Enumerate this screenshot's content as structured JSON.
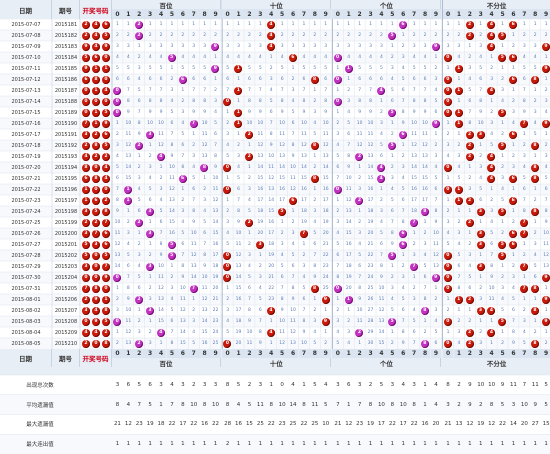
{
  "headers": {
    "date": "日期",
    "issue": "期号",
    "draw": "开奖号码",
    "groups": [
      "百位",
      "十位",
      "个位",
      "不分位"
    ],
    "digits": [
      "0",
      "1",
      "2",
      "3",
      "4",
      "5",
      "6",
      "7",
      "8",
      "9"
    ]
  },
  "rows": [
    {
      "date": "2015-07-07",
      "issue": "2015181",
      "nums": [
        2,
        4,
        6
      ]
    },
    {
      "date": "2015-07-08",
      "issue": "2015182",
      "nums": [
        2,
        4,
        5
      ]
    },
    {
      "date": "2015-07-09",
      "issue": "2015183",
      "nums": [
        9,
        4,
        9
      ]
    },
    {
      "date": "2015-07-10",
      "issue": "2015184",
      "nums": [
        5,
        6,
        0
      ]
    },
    {
      "date": "2015-07-11",
      "issue": "2015185",
      "nums": [
        9,
        1,
        1
      ]
    },
    {
      "date": "2015-07-12",
      "issue": "2015186",
      "nums": [
        6,
        8,
        0
      ]
    },
    {
      "date": "2015-07-13",
      "issue": "2015187",
      "nums": [
        0,
        1,
        4
      ]
    },
    {
      "date": "2015-07-14",
      "issue": "2015188",
      "nums": [
        0,
        0,
        0
      ]
    },
    {
      "date": "2015-07-15",
      "issue": "2015189",
      "nums": [
        0,
        1,
        5
      ]
    },
    {
      "date": "2015-07-16",
      "issue": "2015190",
      "nums": [
        7,
        1,
        9
      ]
    },
    {
      "date": "2015-07-17",
      "issue": "2015191",
      "nums": [
        3,
        2,
        6
      ]
    },
    {
      "date": "2015-07-18",
      "issue": "2015192",
      "nums": [
        2,
        8,
        5
      ]
    },
    {
      "date": "2015-07-19",
      "issue": "2015193",
      "nums": [
        4,
        2,
        2
      ]
    },
    {
      "date": "2015-07-20",
      "issue": "2015194",
      "nums": [
        8,
        0,
        4
      ]
    },
    {
      "date": "2015-07-21",
      "issue": "2015195",
      "nums": [
        6,
        8,
        4
      ]
    },
    {
      "date": "2015-07-22",
      "issue": "2015196",
      "nums": [
        1,
        0,
        0
      ]
    },
    {
      "date": "2015-07-23",
      "issue": "2015197",
      "nums": [
        1,
        6,
        2
      ]
    },
    {
      "date": "2015-07-24",
      "issue": "2015198",
      "nums": [
        3,
        5,
        8
      ]
    },
    {
      "date": "2015-07-25",
      "issue": "2015199",
      "nums": [
        2,
        2,
        7
      ]
    },
    {
      "date": "2015-07-26",
      "issue": "2015200",
      "nums": [
        3,
        7,
        6
      ]
    },
    {
      "date": "2015-07-27",
      "issue": "2015201",
      "nums": [
        5,
        3,
        6
      ]
    },
    {
      "date": "2015-07-28",
      "issue": "2015202",
      "nums": [
        5,
        0,
        5
      ]
    },
    {
      "date": "2015-07-29",
      "issue": "2015203",
      "nums": [
        3,
        0,
        7
      ]
    },
    {
      "date": "2015-07-30",
      "issue": "2015204",
      "nums": [
        0,
        0,
        9
      ]
    },
    {
      "date": "2015-07-31",
      "issue": "2015205",
      "nums": [
        7,
        8,
        0
      ]
    },
    {
      "date": "2015-08-01",
      "issue": "2015206",
      "nums": [
        2,
        9,
        1
      ]
    },
    {
      "date": "2015-08-02",
      "issue": "2015207",
      "nums": [
        3,
        4,
        8
      ]
    },
    {
      "date": "2015-08-03",
      "issue": "2015208",
      "nums": [
        0,
        9,
        5
      ]
    },
    {
      "date": "2015-08-04",
      "issue": "2015209",
      "nums": [
        4,
        4,
        2
      ]
    },
    {
      "date": "2015-08-05",
      "issue": "2015210",
      "nums": [
        2,
        0,
        8
      ]
    }
  ],
  "stats": {
    "labels": [
      "出现总次数",
      "平均遗漏值",
      "最大遗漏值",
      "最大连出值"
    ],
    "sections": [
      "百位",
      "十位",
      "个位",
      "不分位"
    ],
    "rows": [
      [
        3,
        6,
        5,
        6,
        3,
        4,
        3,
        2,
        3,
        3,
        8,
        5,
        2,
        3,
        1,
        0,
        4,
        1,
        5,
        4,
        3,
        6,
        3,
        2,
        5,
        3,
        4,
        3,
        1,
        4,
        8,
        2,
        9,
        10,
        10,
        9,
        11,
        7,
        11,
        5
      ],
      [
        8,
        4,
        7,
        5,
        1,
        7,
        8,
        10,
        8,
        10,
        8,
        4,
        5,
        11,
        8,
        10,
        14,
        8,
        11,
        5,
        7,
        1,
        7,
        8,
        10,
        8,
        10,
        8,
        1,
        4,
        3,
        2,
        9,
        2,
        8,
        5,
        3,
        10,
        9,
        5
      ],
      [
        21,
        12,
        23,
        19,
        18,
        22,
        17,
        22,
        16,
        22,
        28,
        16,
        15,
        25,
        22,
        23,
        25,
        22,
        25,
        10,
        21,
        12,
        23,
        19,
        17,
        22,
        17,
        22,
        16,
        20,
        21,
        13,
        12,
        19,
        12,
        22,
        14,
        20,
        27,
        15
      ],
      [
        1,
        1,
        1,
        1,
        1,
        1,
        1,
        1,
        1,
        1,
        2,
        1,
        1,
        1,
        1,
        1,
        1,
        1,
        1,
        1,
        1,
        1,
        1,
        1,
        1,
        1,
        1,
        1,
        1,
        1,
        1,
        1,
        1,
        1,
        1,
        1,
        1,
        1,
        1,
        1
      ]
    ]
  },
  "colors": {
    "red_ball": "#c8190b",
    "magenta_ball": "#c232c0",
    "line_blue": "#4a90a8",
    "line_red": "#e07a7a",
    "miss_text": "#5b7eb8",
    "header_bg": "#e8eef6"
  }
}
